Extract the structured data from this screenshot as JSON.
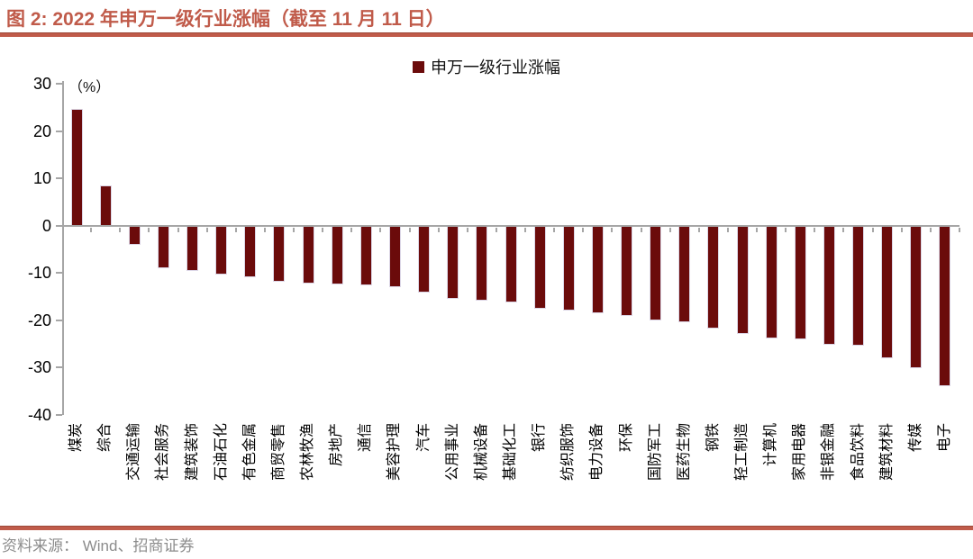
{
  "header": {
    "title": "图 2:  2022 年申万一级行业涨幅（截至 11 月 11 日）"
  },
  "chart_data": {
    "type": "bar",
    "legend": "申万一级行业涨幅",
    "unit_label": "（%）",
    "categories": [
      "煤炭",
      "综合",
      "交通运输",
      "社会服务",
      "建筑装饰",
      "石油石化",
      "有色金属",
      "商贸零售",
      "农林牧渔",
      "房地产",
      "通信",
      "美容护理",
      "汽车",
      "公用事业",
      "机械设备",
      "基础化工",
      "银行",
      "纺织服饰",
      "电力设备",
      "环保",
      "国防军工",
      "医药生物",
      "钢铁",
      "轻工制造",
      "计算机",
      "家用电器",
      "非银金融",
      "食品饮料",
      "建筑材料",
      "传媒",
      "电子"
    ],
    "values": [
      24.7,
      8.5,
      -4.0,
      -9.0,
      -9.5,
      -10.3,
      -10.9,
      -11.8,
      -12.2,
      -12.5,
      -12.7,
      -13.0,
      -14.1,
      -15.5,
      -15.9,
      -16.3,
      -17.5,
      -17.9,
      -18.6,
      -19.0,
      -20.1,
      -20.4,
      -21.7,
      -22.9,
      -23.8,
      -24.0,
      -25.1,
      -25.3,
      -28.0,
      -30.1,
      -34.0
    ],
    "ylim": [
      -40,
      30
    ],
    "yticks": [
      30,
      20,
      10,
      0,
      -10,
      -20,
      -30,
      -40
    ],
    "grid": false,
    "legend_position": "top-center",
    "bar_color": "#6B0B0B",
    "axis_color": "#A6A6A6",
    "accent_color": "#C05B4A"
  },
  "footer": {
    "source": "资料来源： Wind、招商证券"
  }
}
